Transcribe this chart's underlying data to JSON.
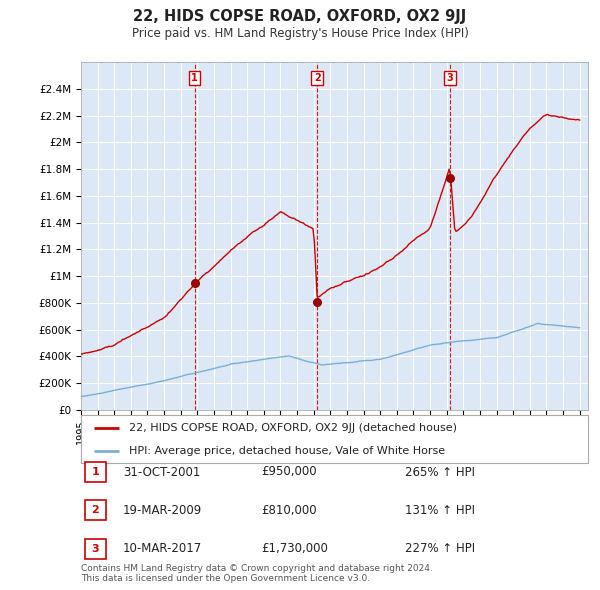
{
  "title": "22, HIDS COPSE ROAD, OXFORD, OX2 9JJ",
  "subtitle": "Price paid vs. HM Land Registry's House Price Index (HPI)",
  "background_color": "#ffffff",
  "plot_bg_color": "#dce8f5",
  "grid_color": "#ffffff",
  "ylim": [
    0,
    2600000
  ],
  "yticks": [
    0,
    200000,
    400000,
    600000,
    800000,
    1000000,
    1200000,
    1400000,
    1600000,
    1800000,
    2000000,
    2200000,
    2400000
  ],
  "ytick_labels": [
    "£0",
    "£200K",
    "£400K",
    "£600K",
    "£800K",
    "£1M",
    "£1.2M",
    "£1.4M",
    "£1.6M",
    "£1.8M",
    "£2M",
    "£2.2M",
    "£2.4M"
  ],
  "xlim_start": 1995.0,
  "xlim_end": 2025.5,
  "xtick_years": [
    1995,
    1996,
    1997,
    1998,
    1999,
    2000,
    2001,
    2002,
    2003,
    2004,
    2005,
    2006,
    2007,
    2008,
    2009,
    2010,
    2011,
    2012,
    2013,
    2014,
    2015,
    2016,
    2017,
    2018,
    2019,
    2020,
    2021,
    2022,
    2023,
    2024,
    2025
  ],
  "sale_dates": [
    2001.83,
    2009.21,
    2017.19
  ],
  "sale_prices": [
    950000,
    810000,
    1730000
  ],
  "sale_labels": [
    "1",
    "2",
    "3"
  ],
  "vline_color": "#cc0000",
  "shade_color": "#c8dcf0",
  "sale_marker_color": "#990000",
  "hpi_line_color": "#7aafd4",
  "price_line_color": "#cc0000",
  "legend_label_price": "22, HIDS COPSE ROAD, OXFORD, OX2 9JJ (detached house)",
  "legend_label_hpi": "HPI: Average price, detached house, Vale of White Horse",
  "table_rows": [
    {
      "num": "1",
      "date": "31-OCT-2001",
      "price": "£950,000",
      "change": "265% ↑ HPI"
    },
    {
      "num": "2",
      "date": "19-MAR-2009",
      "price": "£810,000",
      "change": "131% ↑ HPI"
    },
    {
      "num": "3",
      "date": "10-MAR-2017",
      "price": "£1,730,000",
      "change": "227% ↑ HPI"
    }
  ],
  "footer": "Contains HM Land Registry data © Crown copyright and database right 2024.\nThis data is licensed under the Open Government Licence v3.0."
}
